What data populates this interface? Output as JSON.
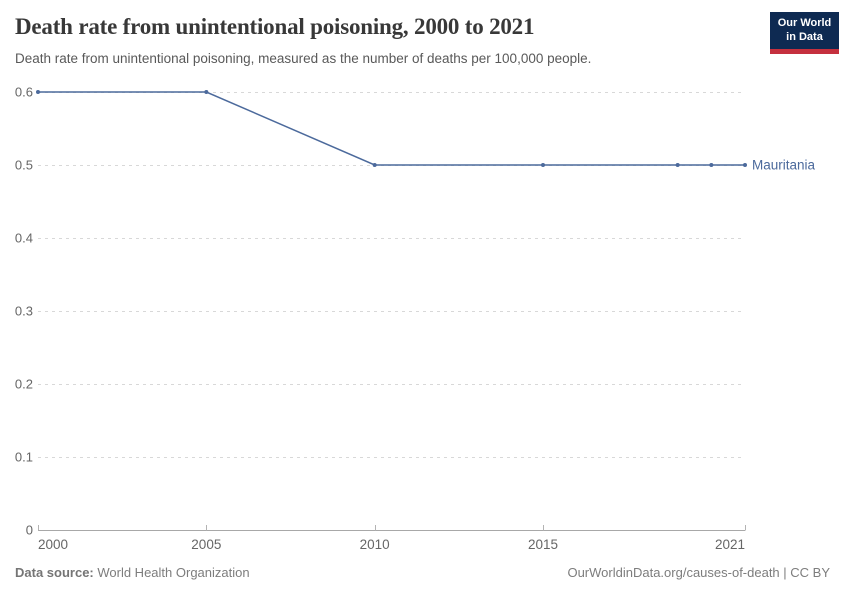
{
  "header": {
    "title": "Death rate from unintentional poisoning, 2000 to 2021",
    "subtitle": "Death rate from unintentional poisoning, measured as the number of deaths per 100,000 people.",
    "logo_line1": "Our World",
    "logo_line2": "in Data"
  },
  "footer": {
    "source_label": "Data source:",
    "source_value": " World Health Organization",
    "credit": "OurWorldinData.org/causes-of-death | CC BY"
  },
  "colors": {
    "series_blue": "#4C6A9C",
    "logo_navy": "#0e2a52",
    "logo_red": "#c5303e",
    "grid_gray": "#d8d8d8",
    "axis_gray": "#a8a8a8",
    "tick_label_gray": "#666666"
  },
  "chart_data": {
    "type": "line",
    "title": "Death rate from unintentional poisoning, 2000 to 2021",
    "subtitle": "Death rate from unintentional poisoning, measured as the number of deaths per 100,000 people.",
    "xlabel": "",
    "ylabel": "",
    "x_range": [
      2000,
      2021
    ],
    "y_range": [
      0,
      0.6
    ],
    "grid": "dashed-horizontal",
    "legend": "end-of-line-label",
    "series": [
      {
        "name": "Mauritania",
        "color": "#4C6A9C",
        "points": [
          {
            "x": 2000,
            "y": 0.6
          },
          {
            "x": 2005,
            "y": 0.6
          },
          {
            "x": 2010,
            "y": 0.5
          },
          {
            "x": 2015,
            "y": 0.5
          },
          {
            "x": 2019,
            "y": 0.5
          },
          {
            "x": 2020,
            "y": 0.5
          },
          {
            "x": 2021,
            "y": 0.5
          }
        ]
      }
    ],
    "x_ticks": [
      {
        "value": 2000,
        "label": "2000"
      },
      {
        "value": 2005,
        "label": "2005"
      },
      {
        "value": 2010,
        "label": "2010"
      },
      {
        "value": 2015,
        "label": "2015"
      },
      {
        "value": 2021,
        "label": "2021"
      }
    ],
    "y_ticks": [
      {
        "value": 0,
        "label": "0"
      },
      {
        "value": 0.1,
        "label": "0.1"
      },
      {
        "value": 0.2,
        "label": "0.2"
      },
      {
        "value": 0.3,
        "label": "0.3"
      },
      {
        "value": 0.4,
        "label": "0.4"
      },
      {
        "value": 0.5,
        "label": "0.5"
      },
      {
        "value": 0.6,
        "label": "0.6"
      }
    ]
  }
}
